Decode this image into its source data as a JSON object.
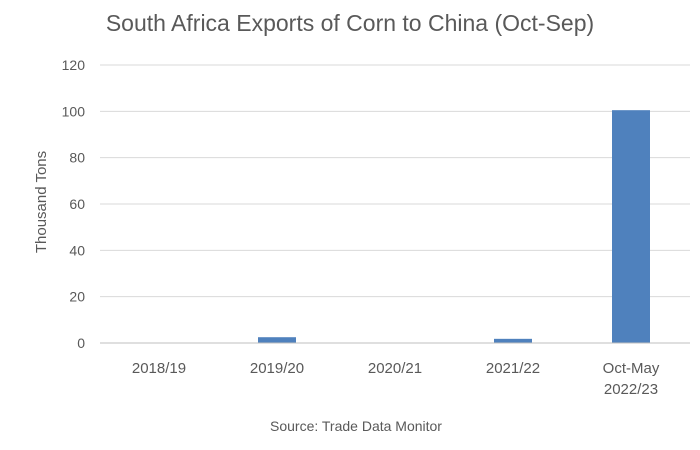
{
  "chart_data": {
    "type": "bar",
    "title": "South Africa Exports of Corn to China (Oct-Sep)",
    "ylabel": "Thousand Tons",
    "xlabel": "",
    "ylim": [
      0,
      120
    ],
    "yticks": [
      0,
      20,
      40,
      60,
      80,
      100,
      120
    ],
    "categories": [
      [
        "2018/19"
      ],
      [
        "2019/20"
      ],
      [
        "2020/21"
      ],
      [
        "2021/22"
      ],
      [
        "Oct-May",
        "2022/23"
      ]
    ],
    "values": [
      0,
      2.5,
      0,
      1.8,
      100.5
    ],
    "bar_color": "#4F81BD",
    "grid": true,
    "legend": "none",
    "source": "Source: Trade Data Monitor"
  }
}
